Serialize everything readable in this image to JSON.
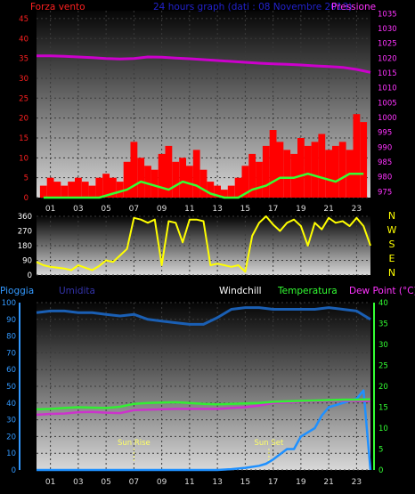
{
  "header": {
    "left_label": "Forza vento",
    "center_label": "24 hours graph (dati : 08 Novembre 2013)",
    "right_label": "Pressione"
  },
  "bottom_header": {
    "labels": [
      {
        "text": "Pioggia",
        "color": "#3399ff"
      },
      {
        "text": "Umidita",
        "color": "#3333aa"
      },
      {
        "text": "Windchill",
        "color": "#ffffff"
      },
      {
        "text": "Temperatura",
        "color": "#33ff33"
      },
      {
        "text": "Dew Point (°C)",
        "color": "#ff33ff"
      }
    ]
  },
  "direction_labels": [
    "N",
    "W",
    "S",
    "E",
    "N"
  ],
  "colors": {
    "wind": "#ff0000",
    "wind_avg": "#33ff33",
    "pressure": "#cc00cc",
    "direction": "#ffff00",
    "humidity": "#1a5fb4",
    "rain": "#1e90ff",
    "temperature": "#33ee33",
    "dew_point": "#cc33cc",
    "axis_left_top": "#ff2020",
    "axis_right_top": "#ff33ff",
    "axis_bottom_left": "#3399ff",
    "axis_bottom_right": "#33ff33",
    "annotation": "#ffff66"
  },
  "chart_data": [
    {
      "type": "line",
      "panel": "wind_pressure",
      "x_ticks": [
        "01",
        "03",
        "05",
        "07",
        "09",
        "11",
        "13",
        "15",
        "17",
        "19",
        "21",
        "23"
      ],
      "xlim": [
        0,
        24
      ],
      "y_left_ticks": [
        0,
        5,
        10,
        15,
        20,
        25,
        30,
        35,
        40,
        45
      ],
      "ylim_left": [
        0,
        47
      ],
      "y_right_ticks": [
        975,
        980,
        985,
        990,
        995,
        1000,
        1005,
        1010,
        1015,
        1020,
        1025,
        1030,
        1035
      ],
      "ylim_right": [
        973,
        1036
      ],
      "series": [
        {
          "name": "Forza vento",
          "axis": "left",
          "kind": "bar",
          "x": [
            0.5,
            1.0,
            1.5,
            2.0,
            2.5,
            3.0,
            3.5,
            4.0,
            4.5,
            5.0,
            5.5,
            6.0,
            6.5,
            7.0,
            7.5,
            8.0,
            8.5,
            9.0,
            9.5,
            10.0,
            10.5,
            11.0,
            11.5,
            12.0,
            12.5,
            13.0,
            13.5,
            14.0,
            14.5,
            15.0,
            15.5,
            16.0,
            16.5,
            17.0,
            17.5,
            18.0,
            18.5,
            19.0,
            19.5,
            20.0,
            20.5,
            21.0,
            21.5,
            22.0,
            22.5,
            23.0,
            23.5
          ],
          "y": [
            3,
            5,
            4,
            3,
            4,
            5,
            4,
            3,
            5,
            6,
            5,
            4,
            9,
            14,
            10,
            8,
            7,
            11,
            13,
            9,
            10,
            8,
            12,
            7,
            4,
            3,
            2,
            3,
            5,
            8,
            11,
            9,
            13,
            17,
            14,
            12,
            11,
            15,
            13,
            14,
            16,
            12,
            13,
            14,
            12,
            21,
            19
          ]
        },
        {
          "name": "Forza vento media",
          "axis": "left",
          "kind": "line",
          "x": [
            0.5,
            1.5,
            2.5,
            3.5,
            4.5,
            5.5,
            6.5,
            7.0,
            7.5,
            8.5,
            9.5,
            10.5,
            11.5,
            12.5,
            13.5,
            14.5,
            15.5,
            16.5,
            17.5,
            18.5,
            19.5,
            20.5,
            21.5,
            22.5,
            23.5
          ],
          "y": [
            0,
            0,
            0,
            0,
            0,
            1,
            2,
            3,
            4,
            3,
            2,
            4,
            3,
            1,
            0,
            0,
            2,
            3,
            5,
            5,
            6,
            5,
            4,
            6,
            6
          ]
        },
        {
          "name": "Pressione",
          "axis": "right",
          "kind": "line",
          "x": [
            0,
            1,
            2,
            3,
            4,
            5,
            6,
            7,
            8,
            9,
            10,
            11,
            12,
            13,
            14,
            15,
            16,
            17,
            18,
            19,
            20,
            21,
            22,
            23,
            24
          ],
          "y": [
            1020.8,
            1020.8,
            1020.6,
            1020.4,
            1020.2,
            1019.9,
            1019.7,
            1019.9,
            1020.4,
            1020.3,
            1020.0,
            1019.8,
            1019.5,
            1019.2,
            1018.9,
            1018.6,
            1018.3,
            1018.1,
            1017.9,
            1017.7,
            1017.4,
            1017.2,
            1016.9,
            1016.2,
            1015.2
          ]
        }
      ]
    },
    {
      "type": "line",
      "panel": "wind_direction",
      "x_ticks": [
        "01",
        "03",
        "05",
        "07",
        "09",
        "11",
        "13",
        "15",
        "17",
        "19",
        "21",
        "23"
      ],
      "xlim": [
        0,
        24
      ],
      "y_ticks": [
        0,
        90,
        180,
        270,
        360
      ],
      "ylim": [
        0,
        360
      ],
      "series": [
        {
          "name": "Direzione",
          "kind": "line",
          "x": [
            0,
            0.5,
            1,
            1.5,
            2,
            2.5,
            3,
            3.5,
            4,
            4.5,
            5,
            5.5,
            6,
            6.5,
            7,
            7.5,
            8,
            8.5,
            9,
            9.5,
            10,
            10.5,
            11,
            11.5,
            12,
            12.5,
            13,
            13.5,
            14,
            14.5,
            15,
            15.5,
            16,
            16.5,
            17,
            17.5,
            18,
            18.5,
            19,
            19.5,
            20,
            20.5,
            21,
            21.5,
            22,
            22.5,
            23,
            23.5,
            24
          ],
          "y": [
            80,
            60,
            50,
            45,
            40,
            30,
            60,
            45,
            30,
            55,
            90,
            80,
            120,
            160,
            350,
            340,
            320,
            340,
            60,
            330,
            320,
            200,
            340,
            340,
            330,
            60,
            70,
            60,
            50,
            60,
            20,
            240,
            320,
            360,
            310,
            270,
            320,
            340,
            300,
            180,
            320,
            280,
            350,
            320,
            330,
            300,
            350,
            300,
            180
          ]
        }
      ]
    },
    {
      "type": "line",
      "panel": "rain_humidity_temperature",
      "x_ticks": [
        "01",
        "03",
        "05",
        "07",
        "09",
        "11",
        "13",
        "15",
        "17",
        "19",
        "21",
        "23"
      ],
      "xlim": [
        0,
        24
      ],
      "y_left_ticks": [
        0,
        10,
        20,
        30,
        40,
        50,
        60,
        70,
        80,
        90,
        100
      ],
      "ylim_left": [
        0,
        100
      ],
      "y_right_ticks": [
        0,
        5,
        10,
        15,
        20,
        25,
        30,
        35,
        40
      ],
      "ylim_right": [
        0,
        40
      ],
      "annotations": [
        {
          "text": "Sun Rise",
          "x": 7.0
        },
        {
          "text": "Sun Set",
          "x": 16.7
        }
      ],
      "series": [
        {
          "name": "Umidita",
          "axis": "left",
          "kind": "line",
          "x": [
            0,
            1,
            2,
            3,
            4,
            5,
            6,
            7,
            8,
            9,
            10,
            11,
            12,
            13,
            14,
            15,
            16,
            17,
            18,
            19,
            20,
            21,
            22,
            23,
            24
          ],
          "y": [
            94,
            95,
            95,
            94,
            94,
            93,
            92,
            93,
            90,
            89,
            88,
            87,
            87,
            91,
            96,
            97,
            97,
            96,
            96,
            96,
            96,
            97,
            96,
            95,
            90
          ]
        },
        {
          "name": "Pioggia",
          "axis": "right",
          "kind": "line",
          "x": [
            0,
            1,
            2,
            3,
            4,
            5,
            6,
            7,
            8,
            9,
            10,
            11,
            12,
            13,
            14,
            15,
            16,
            16.5,
            17,
            18,
            18.5,
            19,
            20,
            20.5,
            21,
            22,
            23,
            23.5,
            24,
            24
          ],
          "y": [
            0,
            0,
            0,
            0,
            0,
            0,
            0,
            0,
            0,
            0,
            0,
            0,
            0,
            0,
            0.2,
            0.5,
            1,
            1.5,
            2.5,
            5,
            5,
            8,
            10,
            13,
            15,
            16,
            17,
            19,
            0,
            0
          ]
        },
        {
          "name": "Temperatura",
          "axis": "right",
          "kind": "line",
          "x": [
            0,
            1,
            2,
            3,
            4,
            5,
            6,
            7,
            8,
            9,
            10,
            11,
            12,
            13,
            14,
            15,
            16,
            17,
            18,
            19,
            20,
            21,
            22,
            23,
            24
          ],
          "y": [
            14.5,
            14.6,
            14.8,
            15.0,
            14.9,
            14.8,
            15.1,
            15.8,
            16.0,
            16.1,
            16.2,
            16.0,
            15.8,
            15.7,
            15.8,
            15.9,
            16.0,
            16.3,
            16.4,
            16.5,
            16.6,
            16.7,
            16.8,
            16.8,
            16.9
          ]
        },
        {
          "name": "Dew Point",
          "axis": "right",
          "kind": "line",
          "x": [
            0,
            1,
            2,
            3,
            4,
            5,
            6,
            7,
            8,
            9,
            10,
            11,
            12,
            13,
            14,
            15,
            16,
            17,
            18,
            19,
            20,
            21,
            22,
            23,
            24
          ],
          "y": [
            13.2,
            13.4,
            13.5,
            13.8,
            13.9,
            13.7,
            13.6,
            14.3,
            14.4,
            14.5,
            14.6,
            14.6,
            14.6,
            14.6,
            14.8,
            15.0,
            15.4,
            16.0,
            16.1,
            16.3,
            16.4,
            16.5,
            16.6,
            16.5,
            16.5
          ]
        },
        {
          "name": "Windchill",
          "axis": "right",
          "kind": "line",
          "x": [
            0,
            1,
            2,
            3,
            4,
            5,
            6,
            7,
            8,
            9,
            10,
            11,
            12,
            13,
            14,
            15,
            16,
            17,
            18,
            19,
            20,
            21,
            22,
            23,
            24
          ],
          "y": [
            14.5,
            14.6,
            14.8,
            15.0,
            14.9,
            14.8,
            15.1,
            15.8,
            16.0,
            16.1,
            16.2,
            16.0,
            15.8,
            15.7,
            15.8,
            15.9,
            16.0,
            16.3,
            16.4,
            16.5,
            16.6,
            16.7,
            16.8,
            16.8,
            16.9
          ]
        }
      ]
    }
  ]
}
